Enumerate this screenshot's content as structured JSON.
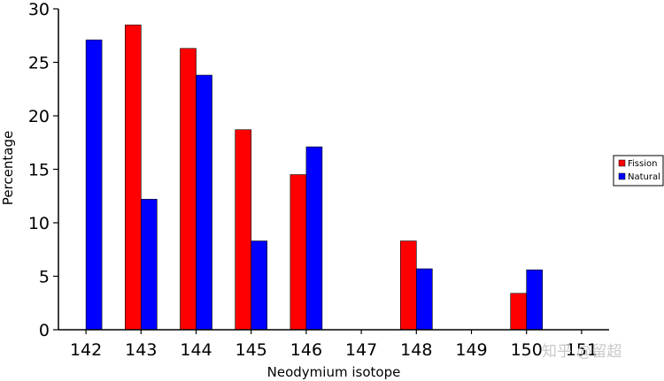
{
  "chart_data": {
    "type": "bar",
    "categories": [
      "142",
      "143",
      "144",
      "145",
      "146",
      "147",
      "148",
      "149",
      "150",
      "151"
    ],
    "series": [
      {
        "name": "Fission",
        "color": "#ff0000",
        "values": [
          0,
          28.5,
          26.3,
          18.7,
          14.5,
          0,
          8.3,
          0,
          3.4,
          0
        ]
      },
      {
        "name": "Natural",
        "color": "#0000ff",
        "values": [
          27.1,
          12.2,
          23.8,
          8.3,
          17.1,
          0,
          5.7,
          0,
          5.6,
          0
        ]
      }
    ],
    "yticks": [
      "0",
      "5",
      "10",
      "15",
      "20",
      "25",
      "30"
    ],
    "ylim": [
      0,
      30
    ],
    "xlabel": "Neodymium isotope",
    "ylabel": "Percentage",
    "grid": false,
    "legend": "right"
  },
  "watermark": "知乎 @留超"
}
